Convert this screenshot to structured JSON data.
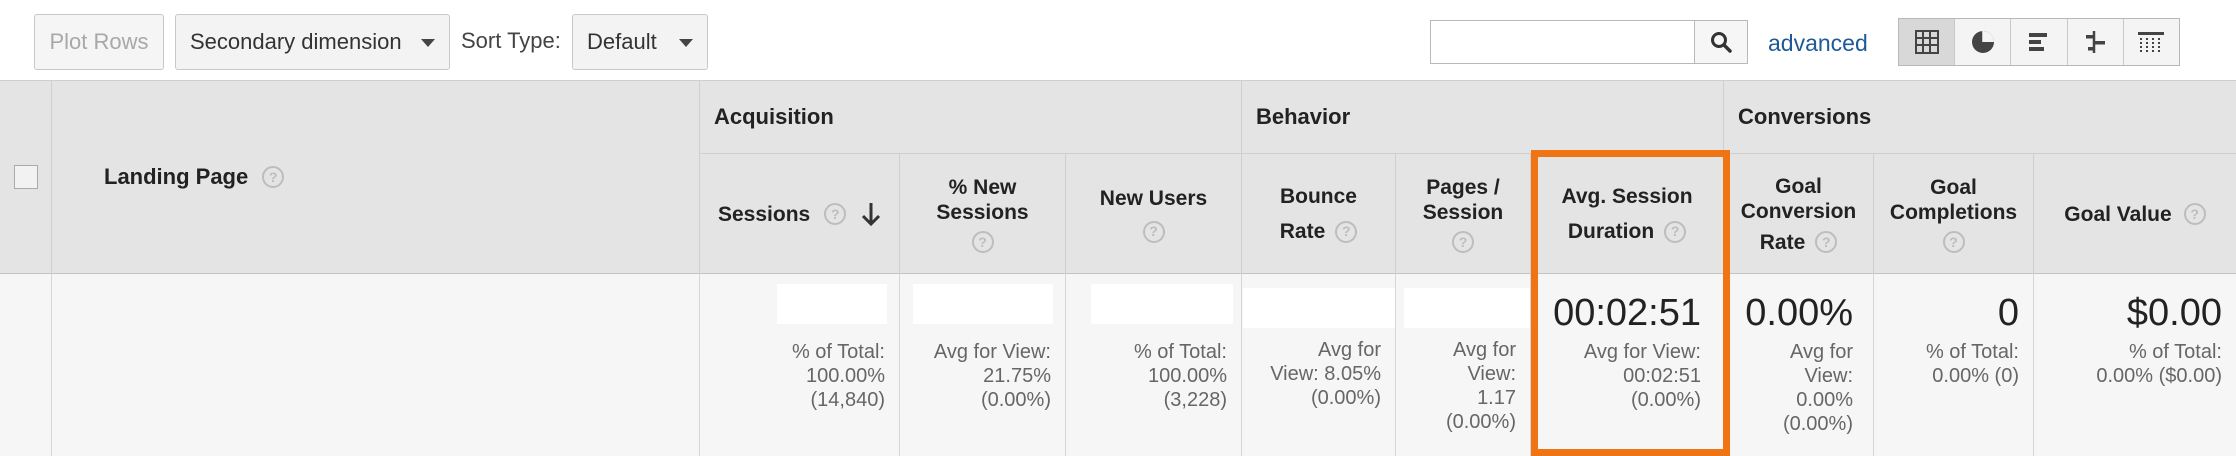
{
  "toolbar": {
    "plot_rows": "Plot Rows",
    "secondary_dimension": "Secondary dimension",
    "sort_type_label": "Sort Type:",
    "sort_type_value": "Default",
    "search_value": "",
    "advanced": "advanced",
    "view_buttons": [
      "table-view",
      "pie-view",
      "bar-view",
      "comparison-view",
      "pivot-view"
    ]
  },
  "table": {
    "groups": {
      "acquisition": "Acquisition",
      "behavior": "Behavior",
      "conversions": "Conversions"
    },
    "columns": {
      "landing_page": "Landing Page",
      "sessions": "Sessions",
      "pct_new_sessions_1": "% New",
      "pct_new_sessions_2": "Sessions",
      "new_users": "New Users",
      "bounce_rate_1": "Bounce",
      "bounce_rate_2": "Rate",
      "pages_session_1": "Pages /",
      "pages_session_2": "Session",
      "avg_session_1": "Avg. Session",
      "avg_session_2": "Duration",
      "goal_conv_1": "Goal",
      "goal_conv_2": "Conversion",
      "goal_conv_3": "Rate",
      "goal_comp_1": "Goal",
      "goal_comp_2": "Completions",
      "goal_value": "Goal Value"
    },
    "totals": {
      "sessions_sub": [
        "% of Total:",
        "100.00%",
        "(14,840)"
      ],
      "pct_new_sub": [
        "Avg for View:",
        "21.75%",
        "(0.00%)"
      ],
      "new_users_sub": [
        "% of Total:",
        "100.00%",
        "(3,228)"
      ],
      "bounce_sub": [
        "Avg for",
        "View: 8.05%",
        "(0.00%)"
      ],
      "pages_sub": [
        "Avg for",
        "View:",
        "1.17",
        "(0.00%)"
      ],
      "avg_session_value": "00:02:51",
      "avg_session_sub": [
        "Avg for View:",
        "00:02:51",
        "(0.00%)"
      ],
      "goal_conv_value": "0.00%",
      "goal_conv_sub": [
        "Avg for",
        "View:",
        "0.00%",
        "(0.00%)"
      ],
      "goal_comp_value": "0",
      "goal_comp_sub": [
        "% of Total:",
        "0.00% (0)"
      ],
      "goal_value_value": "$0.00",
      "goal_value_sub": [
        "% of Total:",
        "0.00% ($0.00)"
      ]
    }
  },
  "colors": {
    "highlight": "#ef7414",
    "link": "#1d5a97",
    "header_bg": "#e4e4e4"
  }
}
